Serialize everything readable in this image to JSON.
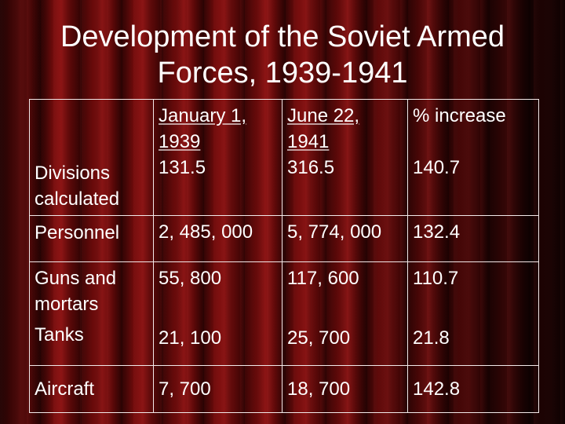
{
  "slide": {
    "title_line1": "Development of the Soviet Armed",
    "title_line2": "Forces, 1939-1941"
  },
  "table": {
    "headers": [
      "",
      "January 1, 1939",
      "June 22, 1941",
      "% increase"
    ],
    "header_lines": {
      "col2_a": "January 1,",
      "col2_b": "1939",
      "col3_a": "June 22,",
      "col3_b": "1941",
      "col4": "% increase"
    },
    "rows": [
      {
        "label": "Divisions calculated",
        "label_a": "Divisions",
        "label_b": "calculated",
        "jan1939": "131.5",
        "jun1941": "316.5",
        "increase": "140.7"
      },
      {
        "label": "Personnel",
        "jan1939": "2, 485, 000",
        "jun1941": "5, 774, 000",
        "increase": "132.4"
      },
      {
        "label": "Guns and mortars",
        "label_a": "Guns and",
        "label_b": "mortars",
        "jan1939": "55, 800",
        "jun1941": "117, 600",
        "increase": "110.7"
      },
      {
        "label": "Tanks",
        "jan1939": "21, 100",
        "jun1941": "25, 700",
        "increase": "21.8"
      },
      {
        "label": "Aircraft",
        "jan1939": "7, 700",
        "jun1941": "18, 700",
        "increase": "142.8"
      }
    ]
  }
}
